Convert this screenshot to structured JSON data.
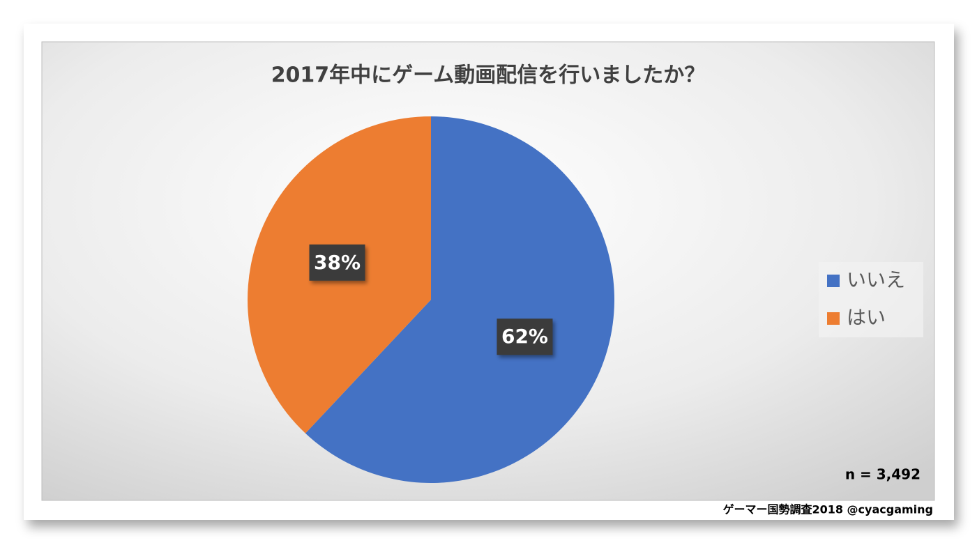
{
  "chart_data": {
    "type": "pie",
    "title": "2017年中にゲーム動画配信を行いましたか？",
    "categories": [
      "いいえ",
      "はい"
    ],
    "values": [
      62,
      38
    ],
    "value_labels": [
      "62%",
      "38%"
    ],
    "colors": [
      "#4472c4",
      "#ed7d31"
    ],
    "legend": "right",
    "annotation": "n = 3,492",
    "source": "ゲーマー国勢調査2018 @cyacgaming"
  }
}
